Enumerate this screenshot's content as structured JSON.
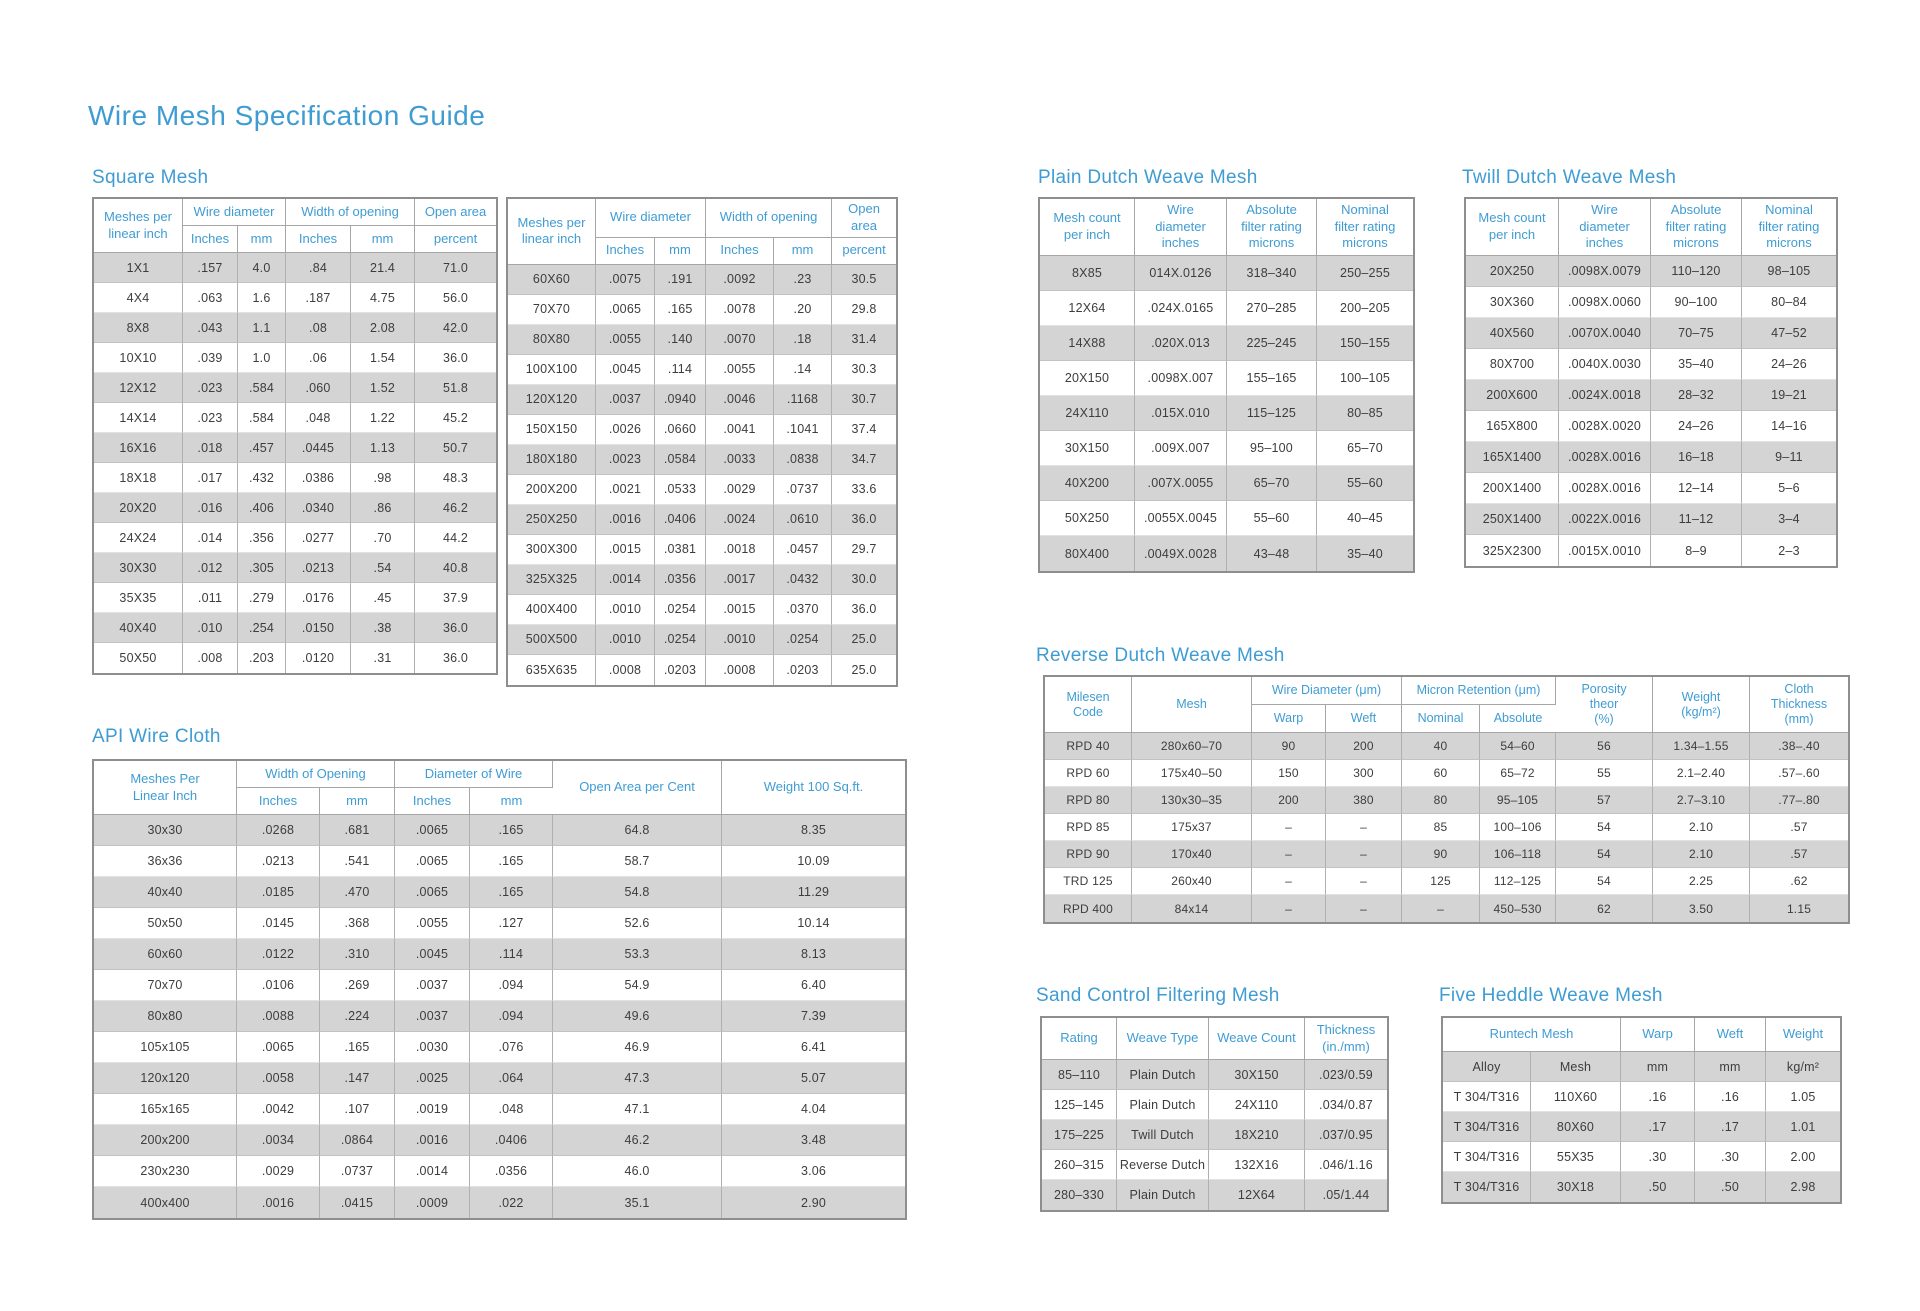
{
  "title": "Wire Mesh Specification Guide",
  "colors": {
    "accent": "#3f9cd3",
    "shade": "#d4d4d4"
  },
  "sections": {
    "square_mesh": {
      "heading": "Square Mesh",
      "table1": {
        "head": [
          [
            {
              "t": "Meshes per\nlinear inch",
              "rs": 2
            },
            {
              "t": "Wire diameter",
              "cs": 2
            },
            {
              "t": "Width of opening",
              "cs": 2
            },
            {
              "t": "Open area"
            }
          ],
          [
            {
              "t": "Inches"
            },
            {
              "t": "mm"
            },
            {
              "t": "Inches"
            },
            {
              "t": "mm"
            },
            {
              "t": "percent"
            }
          ]
        ],
        "rows": [
          [
            "1X1",
            ".157",
            "4.0",
            ".84",
            "21.4",
            "71.0"
          ],
          [
            "4X4",
            ".063",
            "1.6",
            ".187",
            "4.75",
            "56.0"
          ],
          [
            "8X8",
            ".043",
            "1.1",
            ".08",
            "2.08",
            "42.0"
          ],
          [
            "10X10",
            ".039",
            "1.0",
            ".06",
            "1.54",
            "36.0"
          ],
          [
            "12X12",
            ".023",
            ".584",
            ".060",
            "1.52",
            "51.8"
          ],
          [
            "14X14",
            ".023",
            ".584",
            ".048",
            "1.22",
            "45.2"
          ],
          [
            "16X16",
            ".018",
            ".457",
            ".0445",
            "1.13",
            "50.7"
          ],
          [
            "18X18",
            ".017",
            ".432",
            ".0386",
            ".98",
            "48.3"
          ],
          [
            "20X20",
            ".016",
            ".406",
            ".0340",
            ".86",
            "46.2"
          ],
          [
            "24X24",
            ".014",
            ".356",
            ".0277",
            ".70",
            "44.2"
          ],
          [
            "30X30",
            ".012",
            ".305",
            ".0213",
            ".54",
            "40.8"
          ],
          [
            "35X35",
            ".011",
            ".279",
            ".0176",
            ".45",
            "37.9"
          ],
          [
            "40X40",
            ".010",
            ".254",
            ".0150",
            ".38",
            "36.0"
          ],
          [
            "50X50",
            ".008",
            ".203",
            ".0120",
            ".31",
            "36.0"
          ]
        ]
      },
      "table2": {
        "head": [
          [
            {
              "t": "Meshes per\nlinear inch",
              "rs": 2
            },
            {
              "t": "Wire diameter",
              "cs": 2
            },
            {
              "t": "Width of opening",
              "cs": 2
            },
            {
              "t": "Open area"
            }
          ],
          [
            {
              "t": "Inches"
            },
            {
              "t": "mm"
            },
            {
              "t": "Inches"
            },
            {
              "t": "mm"
            },
            {
              "t": "percent"
            }
          ]
        ],
        "rows": [
          [
            "60X60",
            ".0075",
            ".191",
            ".0092",
            ".23",
            "30.5"
          ],
          [
            "70X70",
            ".0065",
            ".165",
            ".0078",
            ".20",
            "29.8"
          ],
          [
            "80X80",
            ".0055",
            ".140",
            ".0070",
            ".18",
            "31.4"
          ],
          [
            "100X100",
            ".0045",
            ".114",
            ".0055",
            ".14",
            "30.3"
          ],
          [
            "120X120",
            ".0037",
            ".0940",
            ".0046",
            ".1168",
            "30.7"
          ],
          [
            "150X150",
            ".0026",
            ".0660",
            ".0041",
            ".1041",
            "37.4"
          ],
          [
            "180X180",
            ".0023",
            ".0584",
            ".0033",
            ".0838",
            "34.7"
          ],
          [
            "200X200",
            ".0021",
            ".0533",
            ".0029",
            ".0737",
            "33.6"
          ],
          [
            "250X250",
            ".0016",
            ".0406",
            ".0024",
            ".0610",
            "36.0"
          ],
          [
            "300X300",
            ".0015",
            ".0381",
            ".0018",
            ".0457",
            "29.7"
          ],
          [
            "325X325",
            ".0014",
            ".0356",
            ".0017",
            ".0432",
            "30.0"
          ],
          [
            "400X400",
            ".0010",
            ".0254",
            ".0015",
            ".0370",
            "36.0"
          ],
          [
            "500X500",
            ".0010",
            ".0254",
            ".0010",
            ".0254",
            "25.0"
          ],
          [
            "635X635",
            ".0008",
            ".0203",
            ".0008",
            ".0203",
            "25.0"
          ]
        ]
      }
    },
    "api_wire_cloth": {
      "heading": "API Wire Cloth",
      "table": {
        "head": [
          [
            {
              "t": "Meshes Per\nLinear Inch",
              "rs": 2
            },
            {
              "t": "Width of Opening",
              "cs": 2
            },
            {
              "t": "Diameter of Wire",
              "cs": 2
            },
            {
              "t": "Open Area per Cent",
              "rs": 2
            },
            {
              "t": "Weight 100 Sq.ft.",
              "rs": 2
            }
          ],
          [
            {
              "t": "Inches"
            },
            {
              "t": "mm"
            },
            {
              "t": "Inches"
            },
            {
              "t": "mm"
            }
          ]
        ],
        "rows": [
          [
            "30x30",
            ".0268",
            ".681",
            ".0065",
            ".165",
            "64.8",
            "8.35"
          ],
          [
            "36x36",
            ".0213",
            ".541",
            ".0065",
            ".165",
            "58.7",
            "10.09"
          ],
          [
            "40x40",
            ".0185",
            ".470",
            ".0065",
            ".165",
            "54.8",
            "11.29"
          ],
          [
            "50x50",
            ".0145",
            ".368",
            ".0055",
            ".127",
            "52.6",
            "10.14"
          ],
          [
            "60x60",
            ".0122",
            ".310",
            ".0045",
            ".114",
            "53.3",
            "8.13"
          ],
          [
            "70x70",
            ".0106",
            ".269",
            ".0037",
            ".094",
            "54.9",
            "6.40"
          ],
          [
            "80x80",
            ".0088",
            ".224",
            ".0037",
            ".094",
            "49.6",
            "7.39"
          ],
          [
            "105x105",
            ".0065",
            ".165",
            ".0030",
            ".076",
            "46.9",
            "6.41"
          ],
          [
            "120x120",
            ".0058",
            ".147",
            ".0025",
            ".064",
            "47.3",
            "5.07"
          ],
          [
            "165x165",
            ".0042",
            ".107",
            ".0019",
            ".048",
            "47.1",
            "4.04"
          ],
          [
            "200x200",
            ".0034",
            ".0864",
            ".0016",
            ".0406",
            "46.2",
            "3.48"
          ],
          [
            "230x230",
            ".0029",
            ".0737",
            ".0014",
            ".0356",
            "46.0",
            "3.06"
          ],
          [
            "400x400",
            ".0016",
            ".0415",
            ".0009",
            ".022",
            "35.1",
            "2.90"
          ]
        ]
      }
    },
    "plain_dutch": {
      "heading": "Plain Dutch Weave Mesh",
      "table": {
        "head": [
          [
            {
              "t": "Mesh count\nper inch"
            },
            {
              "t": "Wire\ndiameter\ninches"
            },
            {
              "t": "Absolute\nfilter rating\nmicrons"
            },
            {
              "t": "Nominal\nfilter rating\nmicrons"
            }
          ]
        ],
        "rows": [
          [
            "8X85",
            "014X.0126",
            "318–340",
            "250–255"
          ],
          [
            "12X64",
            ".024X.0165",
            "270–285",
            "200–205"
          ],
          [
            "14X88",
            ".020X.013",
            "225–245",
            "150–155"
          ],
          [
            "20X150",
            ".0098X.007",
            "155–165",
            "100–105"
          ],
          [
            "24X110",
            ".015X.010",
            "115–125",
            "80–85"
          ],
          [
            "30X150",
            ".009X.007",
            "95–100",
            "65–70"
          ],
          [
            "40X200",
            ".007X.0055",
            "65–70",
            "55–60"
          ],
          [
            "50X250",
            ".0055X.0045",
            "55–60",
            "40–45"
          ],
          [
            "80X400",
            ".0049X.0028",
            "43–48",
            "35–40"
          ]
        ]
      }
    },
    "twill_dutch": {
      "heading": "Twill Dutch Weave Mesh",
      "table": {
        "head": [
          [
            {
              "t": "Mesh count\nper inch"
            },
            {
              "t": "Wire\ndiameter\ninches"
            },
            {
              "t": "Absolute\nfilter rating\nmicrons"
            },
            {
              "t": "Nominal\nfilter rating\nmicrons"
            }
          ]
        ],
        "rows": [
          [
            "20X250",
            ".0098X.0079",
            "110–120",
            "98–105"
          ],
          [
            "30X360",
            ".0098X.0060",
            "90–100",
            "80–84"
          ],
          [
            "40X560",
            ".0070X.0040",
            "70–75",
            "47–52"
          ],
          [
            "80X700",
            ".0040X.0030",
            "35–40",
            "24–26"
          ],
          [
            "200X600",
            ".0024X.0018",
            "28–32",
            "19–21"
          ],
          [
            "165X800",
            ".0028X.0020",
            "24–26",
            "14–16"
          ],
          [
            "165X1400",
            ".0028X.0016",
            "16–18",
            "9–11"
          ],
          [
            "200X1400",
            ".0028X.0016",
            "12–14",
            "5–6"
          ],
          [
            "250X1400",
            ".0022X.0016",
            "11–12",
            "3–4"
          ],
          [
            "325X2300",
            ".0015X.0010",
            "8–9",
            "2–3"
          ]
        ]
      }
    },
    "reverse_dutch": {
      "heading": "Reverse Dutch Weave Mesh",
      "table": {
        "head": [
          [
            {
              "t": "Milesen\nCode",
              "rs": 2
            },
            {
              "t": "Mesh",
              "rs": 2
            },
            {
              "t": "Wire Diameter (μm)",
              "cs": 2
            },
            {
              "t": "Micron Retention (μm)",
              "cs": 2
            },
            {
              "t": "Porosity\ntheor\n(%)",
              "rs": 2
            },
            {
              "t": "Weight\n(kg/m²)",
              "rs": 2
            },
            {
              "t": "Cloth\nThickness\n(mm)",
              "rs": 2
            }
          ],
          [
            {
              "t": "Warp"
            },
            {
              "t": "Weft"
            },
            {
              "t": "Nominal"
            },
            {
              "t": "Absolute"
            }
          ]
        ],
        "rows": [
          [
            "RPD 40",
            "280x60–70",
            "90",
            "200",
            "40",
            "54–60",
            "56",
            "1.34–1.55",
            ".38–.40"
          ],
          [
            "RPD 60",
            "175x40–50",
            "150",
            "300",
            "60",
            "65–72",
            "55",
            "2.1–2.40",
            ".57–.60"
          ],
          [
            "RPD 80",
            "130x30–35",
            "200",
            "380",
            "80",
            "95–105",
            "57",
            "2.7–3.10",
            ".77–.80"
          ],
          [
            "RPD 85",
            "175x37",
            "–",
            "–",
            "85",
            "100–106",
            "54",
            "2.10",
            ".57"
          ],
          [
            "RPD 90",
            "170x40",
            "–",
            "–",
            "90",
            "106–118",
            "54",
            "2.10",
            ".57"
          ],
          [
            "TRD 125",
            "260x40",
            "–",
            "–",
            "125",
            "112–125",
            "54",
            "2.25",
            ".62"
          ],
          [
            "RPD 400",
            "84x14",
            "–",
            "–",
            "–",
            "450–530",
            "62",
            "3.50",
            "1.15"
          ]
        ]
      }
    },
    "sand_control": {
      "heading": "Sand Control Filtering Mesh",
      "table": {
        "head": [
          [
            {
              "t": "Rating"
            },
            {
              "t": "Weave Type"
            },
            {
              "t": "Weave Count"
            },
            {
              "t": "Thickness\n(in./mm)"
            }
          ]
        ],
        "rows": [
          [
            "85–110",
            "Plain Dutch",
            "30X150",
            ".023/0.59"
          ],
          [
            "125–145",
            "Plain Dutch",
            "24X110",
            ".034/0.87"
          ],
          [
            "175–225",
            "Twill Dutch",
            "18X210",
            ".037/0.95"
          ],
          [
            "260–315",
            "Reverse Dutch",
            "132X16",
            ".046/1.16"
          ],
          [
            "280–330",
            "Plain Dutch",
            "12X64",
            ".05/1.44"
          ]
        ]
      }
    },
    "five_heddle": {
      "heading": "Five Heddle Weave Mesh",
      "table": {
        "head": [
          [
            {
              "t": "Runtech Mesh",
              "cs": 2
            },
            {
              "t": "Warp"
            },
            {
              "t": "Weft"
            },
            {
              "t": "Weight"
            }
          ]
        ],
        "rows": [
          [
            "Alloy",
            "Mesh",
            "mm",
            "mm",
            "kg/m²"
          ],
          [
            "T 304/T316",
            "110X60",
            ".16",
            ".16",
            "1.05"
          ],
          [
            "T 304/T316",
            "80X60",
            ".17",
            ".17",
            "1.01"
          ],
          [
            "T 304/T316",
            "55X35",
            ".30",
            ".30",
            "2.00"
          ],
          [
            "T 304/T316",
            "30X18",
            ".50",
            ".50",
            "2.98"
          ]
        ]
      }
    }
  }
}
